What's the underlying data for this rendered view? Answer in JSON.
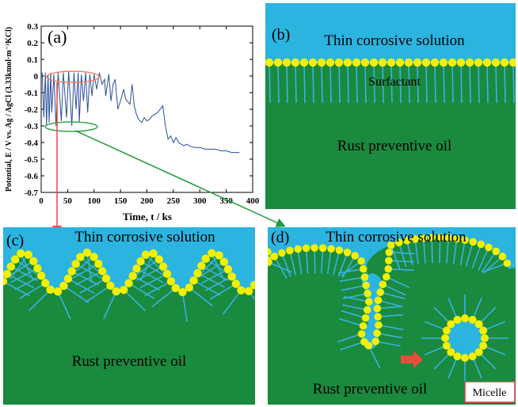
{
  "colors": {
    "solution": "#2bb4e0",
    "oil": "#1a8a3e",
    "head": "#f2f000",
    "tail": "#3ab2e6",
    "curve": "#2a4f9a",
    "orange_ellipse": "#f08060",
    "green_ellipse": "#2ea84a",
    "red_arrow": "#e84c3d",
    "green_arrow": "#1f9a3a",
    "micelle_border": "#d04040"
  },
  "chart_data": {
    "type": "line",
    "xlabel": "Time, t / ks",
    "ylabel": "Potential, E / V vs. Ag / AgCl (3.33kmol·m⁻³KCl)",
    "xlim": [
      0,
      400
    ],
    "ylim": [
      -0.7,
      0.3
    ],
    "xticks": [
      "0",
      "50",
      "100",
      "150",
      "200",
      "250",
      "300",
      "350",
      "400"
    ],
    "yticks": [
      "0.3",
      "0.2",
      "0.1",
      "0",
      "-0.1",
      "-0.2",
      "-0.3",
      "-0.4",
      "-0.5",
      "-0.6",
      "-0.7"
    ],
    "series": [
      {
        "x": [
          2,
          5,
          8,
          10,
          13,
          15,
          18,
          20,
          24,
          28,
          32,
          38,
          42,
          48,
          52,
          58,
          62,
          66,
          70,
          72,
          76,
          80,
          84,
          88,
          92,
          96,
          100,
          105,
          110,
          115,
          120,
          122,
          128,
          132,
          136,
          140,
          145,
          150,
          156,
          160,
          168,
          172,
          176,
          180,
          184,
          190,
          195,
          200,
          205,
          210,
          220,
          230,
          235,
          240,
          245,
          250,
          255,
          260,
          265,
          270,
          275,
          280,
          290,
          300,
          310,
          320,
          330,
          340,
          350,
          360,
          370,
          375
        ],
        "y": [
          0.02,
          -0.25,
          0.02,
          -0.3,
          0.01,
          -0.28,
          0.02,
          -0.22,
          0.01,
          -0.3,
          0.02,
          -0.27,
          0.02,
          -0.25,
          0.03,
          -0.3,
          0.02,
          -0.2,
          0.02,
          -0.28,
          0.01,
          -0.15,
          0.02,
          -0.22,
          0.01,
          -0.12,
          0.01,
          -0.08,
          0.02,
          -0.05,
          -0.02,
          -0.12,
          0.01,
          -0.15,
          -0.05,
          -0.02,
          -0.2,
          -0.15,
          -0.08,
          -0.14,
          -0.17,
          -0.05,
          -0.18,
          -0.23,
          -0.26,
          -0.28,
          -0.25,
          -0.27,
          -0.26,
          -0.24,
          -0.22,
          -0.18,
          -0.3,
          -0.38,
          -0.36,
          -0.4,
          -0.37,
          -0.4,
          -0.41,
          -0.42,
          -0.41,
          -0.42,
          -0.43,
          -0.43,
          -0.44,
          -0.44,
          -0.44,
          -0.45,
          -0.45,
          -0.46,
          -0.46,
          -0.46
        ]
      }
    ]
  },
  "panels": {
    "a": {
      "label": "(a)"
    },
    "b": {
      "label": "(b)",
      "solution": "Thin corrosive solution",
      "surfactant": "Surfactant",
      "oil": "Rust preventive oil"
    },
    "c": {
      "label": "(c)",
      "solution": "Thin corrosive solution",
      "oil": "Rust preventive oil"
    },
    "d": {
      "label": "(d)",
      "solution": "Thin corrosive solution",
      "oil": "Rust preventive oil",
      "micelle": "Micelle"
    }
  }
}
